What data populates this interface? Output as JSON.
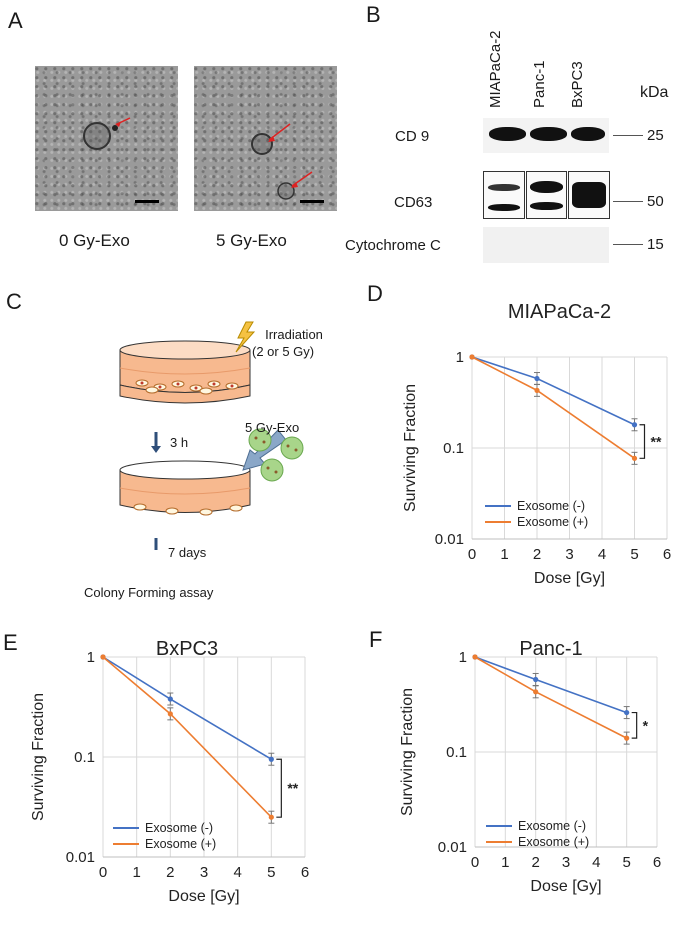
{
  "panels": {
    "a": "A",
    "b": "B",
    "c": "C",
    "d": "D",
    "e": "E",
    "f": "F"
  },
  "tem": {
    "left_caption": "0 Gy-Exo",
    "right_caption": "5 Gy-Exo"
  },
  "western": {
    "lanes": [
      "MIAPaCa-2",
      "Panc-1",
      "BxPC3"
    ],
    "kda_header": "kDa",
    "rows": [
      {
        "label": "CD 9",
        "kda": "25"
      },
      {
        "label": "CD63",
        "kda": "50"
      },
      {
        "label": "Cytochrome  C",
        "kda": "15"
      }
    ]
  },
  "schematic": {
    "irradiation": "Irradiation",
    "irradiation_dose": "(2 or 5 Gy)",
    "exo_label": "5 Gy-Exo",
    "step1": "3 h",
    "step2": "7 days",
    "assay": "Colony Forming assay"
  },
  "colors": {
    "exo_neg": "#4472c4",
    "exo_pos": "#ed7d31",
    "grid": "#d9d9d9"
  },
  "chart_data": [
    {
      "id": "D",
      "type": "line",
      "title": "MIAPaCa-2",
      "xlabel": "Dose [Gy]",
      "ylabel": "Surviving Fraction",
      "x_ticks": [
        "0",
        "1",
        "2",
        "3",
        "4",
        "5",
        "6"
      ],
      "y_ticks": [
        "1",
        "0.1",
        "0.01"
      ],
      "xlim": [
        0,
        6
      ],
      "ylim": [
        0.01,
        1
      ],
      "yscale": "log",
      "x": [
        0,
        2,
        5
      ],
      "series": [
        {
          "name": "Exosome (-)",
          "values": [
            1,
            0.58,
            0.18
          ]
        },
        {
          "name": "Exosome (+)",
          "values": [
            1,
            0.43,
            0.077
          ]
        }
      ],
      "significance": "**",
      "legend_position": "bottom-left"
    },
    {
      "id": "E",
      "type": "line",
      "title": "BxPC3",
      "xlabel": "Dose [Gy]",
      "ylabel": "Surviving Fraction",
      "x_ticks": [
        "0",
        "1",
        "2",
        "3",
        "4",
        "5",
        "6"
      ],
      "y_ticks": [
        "1",
        "0.1",
        "0.01"
      ],
      "xlim": [
        0,
        6
      ],
      "ylim": [
        0.01,
        1
      ],
      "yscale": "log",
      "x": [
        0,
        2,
        5
      ],
      "series": [
        {
          "name": "Exosome (-)",
          "values": [
            1,
            0.38,
            0.095
          ]
        },
        {
          "name": "Exosome (+)",
          "values": [
            1,
            0.27,
            0.025
          ]
        }
      ],
      "significance": "**",
      "legend_position": "bottom-left"
    },
    {
      "id": "F",
      "type": "line",
      "title": "Panc-1",
      "xlabel": "Dose [Gy]",
      "ylabel": "Surviving Fraction",
      "x_ticks": [
        "0",
        "1",
        "2",
        "3",
        "4",
        "5",
        "6"
      ],
      "y_ticks": [
        "1",
        "0.1",
        "0.01"
      ],
      "xlim": [
        0,
        6
      ],
      "ylim": [
        0.01,
        1
      ],
      "yscale": "log",
      "x": [
        0,
        2,
        5
      ],
      "series": [
        {
          "name": "Exosome (-)",
          "values": [
            1,
            0.58,
            0.26
          ]
        },
        {
          "name": "Exosome (+)",
          "values": [
            1,
            0.43,
            0.14
          ]
        }
      ],
      "significance": "*",
      "legend_position": "bottom-left"
    }
  ]
}
